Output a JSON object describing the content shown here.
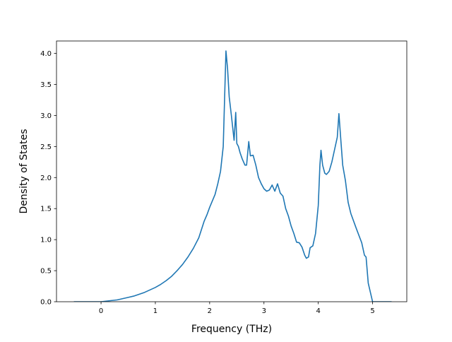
{
  "chart_data": {
    "type": "line",
    "title": "",
    "xlabel": "Frequency (THz)",
    "ylabel": "Density of States",
    "xlim": [
      -0.82,
      5.63
    ],
    "ylim": [
      0,
      4.2
    ],
    "xticks": [
      0,
      1,
      2,
      3,
      4,
      5
    ],
    "yticks": [
      0.0,
      0.5,
      1.0,
      1.5,
      2.0,
      2.5,
      3.0,
      3.5,
      4.0
    ],
    "xtick_labels": [
      "0",
      "1",
      "2",
      "3",
      "4",
      "5"
    ],
    "ytick_labels": [
      "0.0",
      "0.5",
      "1.0",
      "1.5",
      "2.0",
      "2.5",
      "3.0",
      "3.5",
      "4.0"
    ],
    "grid": false,
    "legend": "none",
    "line_color": "#1f77b4",
    "series": [
      {
        "x": [
          -0.5,
          0.0,
          0.1,
          0.2,
          0.3,
          0.4,
          0.5,
          0.6,
          0.7,
          0.8,
          0.9,
          1.0,
          1.1,
          1.2,
          1.3,
          1.4,
          1.5,
          1.6,
          1.7,
          1.8,
          1.9,
          1.95,
          2.0,
          2.1,
          2.15,
          2.2,
          2.25,
          2.3,
          2.33,
          2.36,
          2.4,
          2.45,
          2.48,
          2.5,
          2.53,
          2.56,
          2.6,
          2.65,
          2.68,
          2.72,
          2.75,
          2.8,
          2.85,
          2.9,
          2.95,
          3.0,
          3.05,
          3.1,
          3.15,
          3.2,
          3.25,
          3.3,
          3.35,
          3.4,
          3.45,
          3.5,
          3.55,
          3.6,
          3.65,
          3.7,
          3.75,
          3.78,
          3.82,
          3.85,
          3.9,
          3.95,
          4.0,
          4.03,
          4.05,
          4.08,
          4.12,
          4.15,
          4.2,
          4.25,
          4.3,
          4.35,
          4.38,
          4.42,
          4.45,
          4.5,
          4.55,
          4.6,
          4.7,
          4.8,
          4.85,
          4.88,
          4.92,
          5.0,
          5.2,
          5.35
        ],
        "y": [
          0.0,
          0.0,
          0.01,
          0.02,
          0.03,
          0.05,
          0.07,
          0.09,
          0.12,
          0.15,
          0.19,
          0.23,
          0.28,
          0.34,
          0.41,
          0.5,
          0.6,
          0.72,
          0.86,
          1.03,
          1.3,
          1.4,
          1.52,
          1.73,
          1.9,
          2.1,
          2.5,
          4.04,
          3.75,
          3.3,
          3.0,
          2.6,
          3.05,
          2.55,
          2.5,
          2.4,
          2.3,
          2.2,
          2.2,
          2.58,
          2.35,
          2.36,
          2.2,
          2.0,
          1.9,
          1.82,
          1.78,
          1.8,
          1.88,
          1.78,
          1.9,
          1.75,
          1.7,
          1.5,
          1.38,
          1.22,
          1.1,
          0.96,
          0.95,
          0.88,
          0.75,
          0.7,
          0.72,
          0.87,
          0.9,
          1.1,
          1.55,
          2.2,
          2.44,
          2.2,
          2.07,
          2.05,
          2.1,
          2.25,
          2.45,
          2.65,
          3.03,
          2.55,
          2.2,
          1.95,
          1.6,
          1.42,
          1.18,
          0.95,
          0.75,
          0.72,
          0.3,
          0.0,
          0.0,
          0.0
        ]
      }
    ]
  }
}
